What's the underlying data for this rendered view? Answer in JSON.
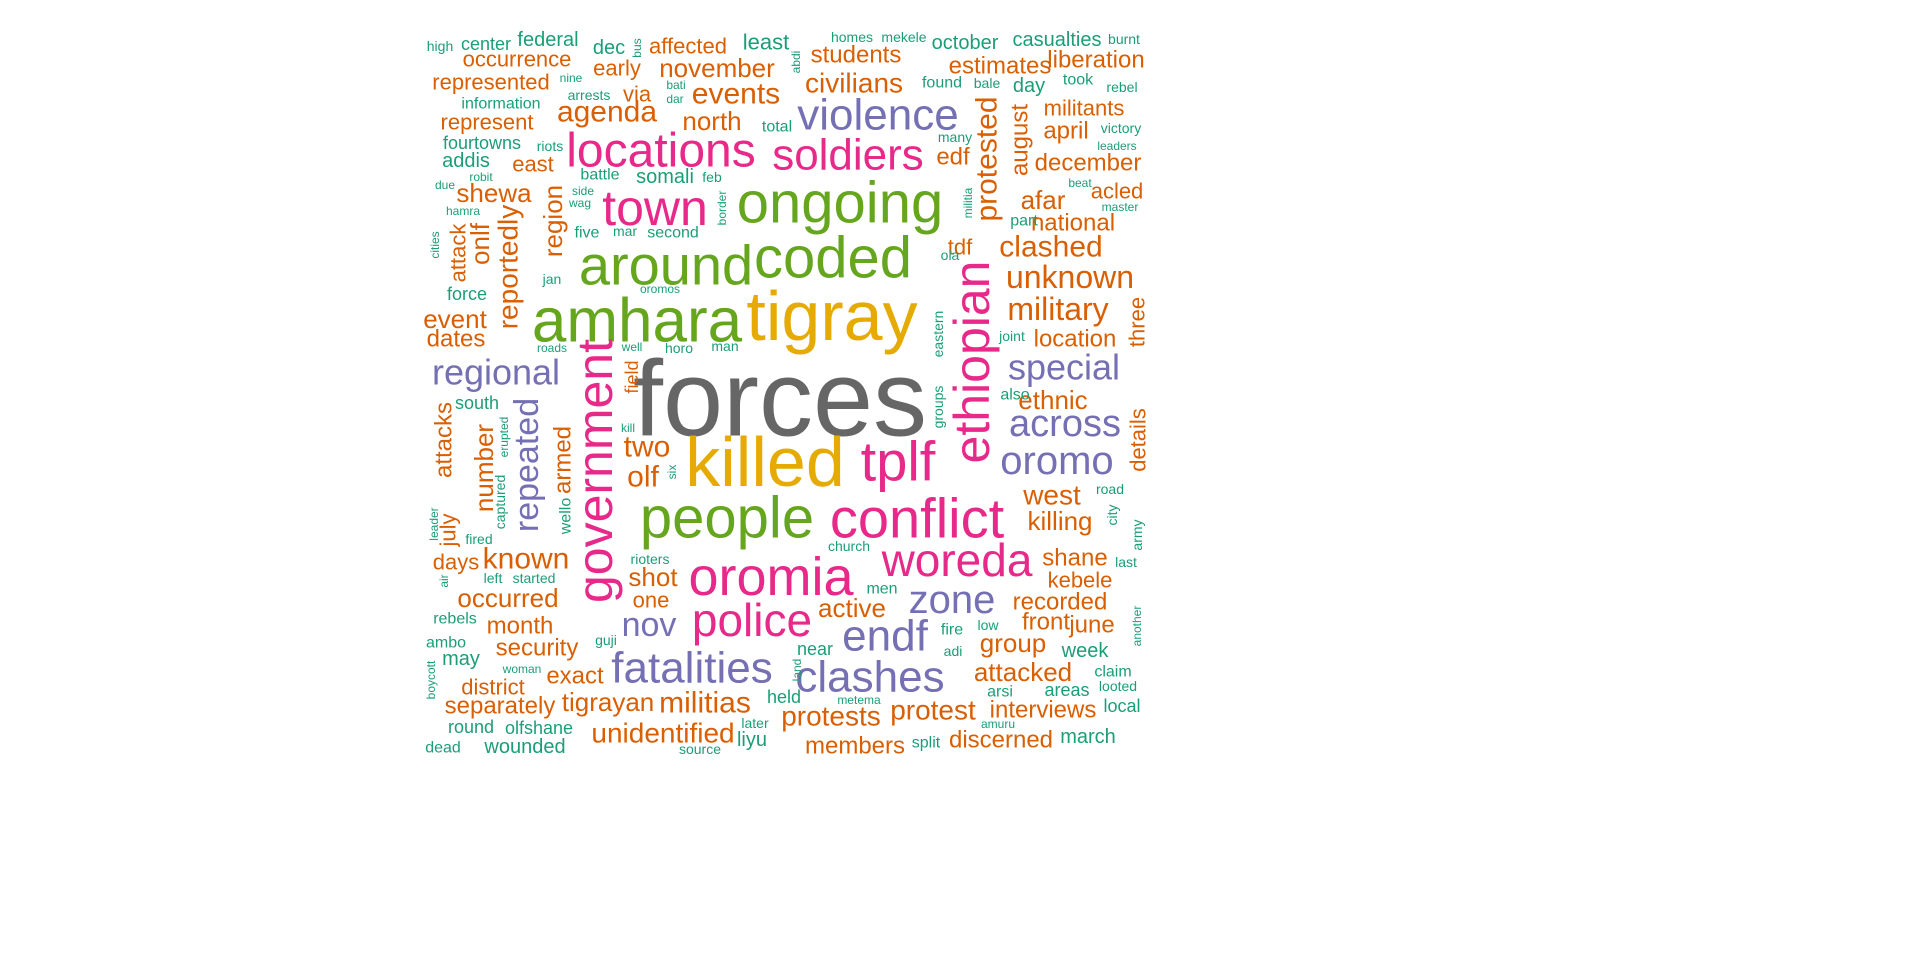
{
  "palette": {
    "teal": "#1b9e77",
    "orange": "#d95f02",
    "purple": "#7570b3",
    "pink": "#e7298a",
    "green": "#66a61e",
    "gold": "#e6ab02",
    "gray": "#666666"
  },
  "words": [
    {
      "text": "forces",
      "color": "gray"
    },
    {
      "text": "killed",
      "color": "gold"
    },
    {
      "text": "tigray",
      "color": "gold"
    },
    {
      "text": "amhara",
      "color": "green"
    },
    {
      "text": "ongoing",
      "color": "green"
    },
    {
      "text": "around",
      "color": "green"
    },
    {
      "text": "coded",
      "color": "green"
    },
    {
      "text": "people",
      "color": "green"
    },
    {
      "text": "government",
      "color": "pink"
    },
    {
      "text": "ethiopian",
      "color": "pink"
    },
    {
      "text": "conflict",
      "color": "pink"
    },
    {
      "text": "oromia",
      "color": "pink"
    },
    {
      "text": "town",
      "color": "pink"
    },
    {
      "text": "locations",
      "color": "pink"
    },
    {
      "text": "soldiers",
      "color": "pink"
    },
    {
      "text": "tplf",
      "color": "pink"
    },
    {
      "text": "woreda",
      "color": "pink"
    },
    {
      "text": "police",
      "color": "pink"
    },
    {
      "text": "violence",
      "color": "purple"
    },
    {
      "text": "fatalities",
      "color": "purple"
    },
    {
      "text": "clashes",
      "color": "purple"
    },
    {
      "text": "endf",
      "color": "purple"
    },
    {
      "text": "zone",
      "color": "purple"
    },
    {
      "text": "oromo",
      "color": "purple"
    },
    {
      "text": "across",
      "color": "purple"
    },
    {
      "text": "special",
      "color": "purple"
    },
    {
      "text": "regional",
      "color": "purple"
    },
    {
      "text": "repeated",
      "color": "purple"
    },
    {
      "text": "nov",
      "color": "purple"
    },
    {
      "text": "protested",
      "color": "orange"
    },
    {
      "text": "unknown",
      "color": "orange"
    },
    {
      "text": "military",
      "color": "orange"
    },
    {
      "text": "clashed",
      "color": "orange"
    },
    {
      "text": "militias",
      "color": "orange"
    },
    {
      "text": "tigrayan",
      "color": "orange"
    },
    {
      "text": "unidentified",
      "color": "orange"
    },
    {
      "text": "protests",
      "color": "orange"
    },
    {
      "text": "protest",
      "color": "orange"
    },
    {
      "text": "members",
      "color": "orange"
    },
    {
      "text": "civilians",
      "color": "orange"
    },
    {
      "text": "students",
      "color": "orange"
    },
    {
      "text": "events",
      "color": "orange"
    },
    {
      "text": "november",
      "color": "orange"
    },
    {
      "text": "agenda",
      "color": "orange"
    },
    {
      "text": "north",
      "color": "orange"
    },
    {
      "text": "two",
      "color": "orange"
    },
    {
      "text": "olf",
      "color": "orange"
    },
    {
      "text": "shot",
      "color": "orange"
    },
    {
      "text": "one",
      "color": "orange"
    },
    {
      "text": "active",
      "color": "orange"
    },
    {
      "text": "west",
      "color": "orange"
    },
    {
      "text": "killing",
      "color": "orange"
    },
    {
      "text": "ethnic",
      "color": "orange"
    },
    {
      "text": "location",
      "color": "orange"
    },
    {
      "text": "national",
      "color": "orange"
    },
    {
      "text": "afar",
      "color": "orange"
    },
    {
      "text": "acled",
      "color": "orange"
    },
    {
      "text": "december",
      "color": "orange"
    },
    {
      "text": "april",
      "color": "orange"
    },
    {
      "text": "militants",
      "color": "orange"
    },
    {
      "text": "august",
      "color": "orange"
    },
    {
      "text": "estimates",
      "color": "orange"
    },
    {
      "text": "liberation",
      "color": "orange"
    },
    {
      "text": "edf",
      "color": "orange"
    },
    {
      "text": "tdf",
      "color": "orange"
    },
    {
      "text": "shane",
      "color": "orange"
    },
    {
      "text": "kebele",
      "color": "orange"
    },
    {
      "text": "recorded",
      "color": "orange"
    },
    {
      "text": "front",
      "color": "orange"
    },
    {
      "text": "june",
      "color": "orange"
    },
    {
      "text": "group",
      "color": "orange"
    },
    {
      "text": "attacked",
      "color": "orange"
    },
    {
      "text": "interviews",
      "color": "orange"
    },
    {
      "text": "discerned",
      "color": "orange"
    },
    {
      "text": "details",
      "color": "orange"
    },
    {
      "text": "three",
      "color": "orange"
    },
    {
      "text": "known",
      "color": "orange"
    },
    {
      "text": "days",
      "color": "orange"
    },
    {
      "text": "occurred",
      "color": "orange"
    },
    {
      "text": "month",
      "color": "orange"
    },
    {
      "text": "security",
      "color": "orange"
    },
    {
      "text": "exact",
      "color": "orange"
    },
    {
      "text": "district",
      "color": "orange"
    },
    {
      "text": "separately",
      "color": "orange"
    },
    {
      "text": "reportedly",
      "color": "orange"
    },
    {
      "text": "region",
      "color": "orange"
    },
    {
      "text": "onlf",
      "color": "orange"
    },
    {
      "text": "attack",
      "color": "orange"
    },
    {
      "text": "shewa",
      "color": "orange"
    },
    {
      "text": "event",
      "color": "orange"
    },
    {
      "text": "dates",
      "color": "orange"
    },
    {
      "text": "number",
      "color": "orange"
    },
    {
      "text": "armed",
      "color": "orange"
    },
    {
      "text": "attacks",
      "color": "orange"
    },
    {
      "text": "july",
      "color": "orange"
    },
    {
      "text": "occurrence",
      "color": "orange"
    },
    {
      "text": "represented",
      "color": "orange"
    },
    {
      "text": "represent",
      "color": "orange"
    },
    {
      "text": "early",
      "color": "orange"
    },
    {
      "text": "affected",
      "color": "orange"
    },
    {
      "text": "via",
      "color": "orange"
    },
    {
      "text": "east",
      "color": "orange"
    },
    {
      "text": "field",
      "color": "orange"
    },
    {
      "text": "federal",
      "color": "teal"
    },
    {
      "text": "center",
      "color": "teal"
    },
    {
      "text": "high",
      "color": "teal"
    },
    {
      "text": "dec",
      "color": "teal"
    },
    {
      "text": "least",
      "color": "teal"
    },
    {
      "text": "homes",
      "color": "teal"
    },
    {
      "text": "mekele",
      "color": "teal"
    },
    {
      "text": "october",
      "color": "teal"
    },
    {
      "text": "casualties",
      "color": "teal"
    },
    {
      "text": "burnt",
      "color": "teal"
    },
    {
      "text": "found",
      "color": "teal"
    },
    {
      "text": "bale",
      "color": "teal"
    },
    {
      "text": "day",
      "color": "teal"
    },
    {
      "text": "took",
      "color": "teal"
    },
    {
      "text": "rebel",
      "color": "teal"
    },
    {
      "text": "victory",
      "color": "teal"
    },
    {
      "text": "leaders",
      "color": "teal"
    },
    {
      "text": "many",
      "color": "teal"
    },
    {
      "text": "total",
      "color": "teal"
    },
    {
      "text": "information",
      "color": "teal"
    },
    {
      "text": "arrests",
      "color": "teal"
    },
    {
      "text": "nine",
      "color": "teal"
    },
    {
      "text": "bati",
      "color": "teal"
    },
    {
      "text": "dar",
      "color": "teal"
    },
    {
      "text": "bus",
      "color": "teal"
    },
    {
      "text": "abdi",
      "color": "teal"
    },
    {
      "text": "fourtowns",
      "color": "teal"
    },
    {
      "text": "riots",
      "color": "teal"
    },
    {
      "text": "addis",
      "color": "teal"
    },
    {
      "text": "robit",
      "color": "teal"
    },
    {
      "text": "battle",
      "color": "teal"
    },
    {
      "text": "somali",
      "color": "teal"
    },
    {
      "text": "feb",
      "color": "teal"
    },
    {
      "text": "side",
      "color": "teal"
    },
    {
      "text": "wag",
      "color": "teal"
    },
    {
      "text": "due",
      "color": "teal"
    },
    {
      "text": "hamra",
      "color": "teal"
    },
    {
      "text": "border",
      "color": "teal"
    },
    {
      "text": "militia",
      "color": "teal"
    },
    {
      "text": "beat",
      "color": "teal"
    },
    {
      "text": "master",
      "color": "teal"
    },
    {
      "text": "part",
      "color": "teal"
    },
    {
      "text": "cities",
      "color": "teal"
    },
    {
      "text": "five",
      "color": "teal"
    },
    {
      "text": "mar",
      "color": "teal"
    },
    {
      "text": "second",
      "color": "teal"
    },
    {
      "text": "ola",
      "color": "teal"
    },
    {
      "text": "jan",
      "color": "teal"
    },
    {
      "text": "oromos",
      "color": "teal"
    },
    {
      "text": "force",
      "color": "teal"
    },
    {
      "text": "roads",
      "color": "teal"
    },
    {
      "text": "well",
      "color": "teal"
    },
    {
      "text": "horo",
      "color": "teal"
    },
    {
      "text": "man",
      "color": "teal"
    },
    {
      "text": "joint",
      "color": "teal"
    },
    {
      "text": "eastern",
      "color": "teal"
    },
    {
      "text": "groups",
      "color": "teal"
    },
    {
      "text": "also",
      "color": "teal"
    },
    {
      "text": "south",
      "color": "teal"
    },
    {
      "text": "erupted",
      "color": "teal"
    },
    {
      "text": "kill",
      "color": "teal"
    },
    {
      "text": "six",
      "color": "teal"
    },
    {
      "text": "captured",
      "color": "teal"
    },
    {
      "text": "wello",
      "color": "teal"
    },
    {
      "text": "leader",
      "color": "teal"
    },
    {
      "text": "fired",
      "color": "teal"
    },
    {
      "text": "road",
      "color": "teal"
    },
    {
      "text": "city",
      "color": "teal"
    },
    {
      "text": "army",
      "color": "teal"
    },
    {
      "text": "church",
      "color": "teal"
    },
    {
      "text": "rioters",
      "color": "teal"
    },
    {
      "text": "last",
      "color": "teal"
    },
    {
      "text": "air",
      "color": "teal"
    },
    {
      "text": "left",
      "color": "teal"
    },
    {
      "text": "started",
      "color": "teal"
    },
    {
      "text": "men",
      "color": "teal"
    },
    {
      "text": "rebels",
      "color": "teal"
    },
    {
      "text": "guji",
      "color": "teal"
    },
    {
      "text": "fire",
      "color": "teal"
    },
    {
      "text": "low",
      "color": "teal"
    },
    {
      "text": "another",
      "color": "teal"
    },
    {
      "text": "ambo",
      "color": "teal"
    },
    {
      "text": "may",
      "color": "teal"
    },
    {
      "text": "woman",
      "color": "teal"
    },
    {
      "text": "boycott",
      "color": "teal"
    },
    {
      "text": "near",
      "color": "teal"
    },
    {
      "text": "land",
      "color": "teal"
    },
    {
      "text": "adi",
      "color": "teal"
    },
    {
      "text": "week",
      "color": "teal"
    },
    {
      "text": "claim",
      "color": "teal"
    },
    {
      "text": "looted",
      "color": "teal"
    },
    {
      "text": "areas",
      "color": "teal"
    },
    {
      "text": "arsi",
      "color": "teal"
    },
    {
      "text": "held",
      "color": "teal"
    },
    {
      "text": "metema",
      "color": "teal"
    },
    {
      "text": "round",
      "color": "teal"
    },
    {
      "text": "olfshane",
      "color": "teal"
    },
    {
      "text": "later",
      "color": "teal"
    },
    {
      "text": "amuru",
      "color": "teal"
    },
    {
      "text": "local",
      "color": "teal"
    },
    {
      "text": "dead",
      "color": "teal"
    },
    {
      "text": "wounded",
      "color": "teal"
    },
    {
      "text": "source",
      "color": "teal"
    },
    {
      "text": "liyu",
      "color": "teal"
    },
    {
      "text": "split",
      "color": "teal"
    },
    {
      "text": "march",
      "color": "teal"
    }
  ]
}
